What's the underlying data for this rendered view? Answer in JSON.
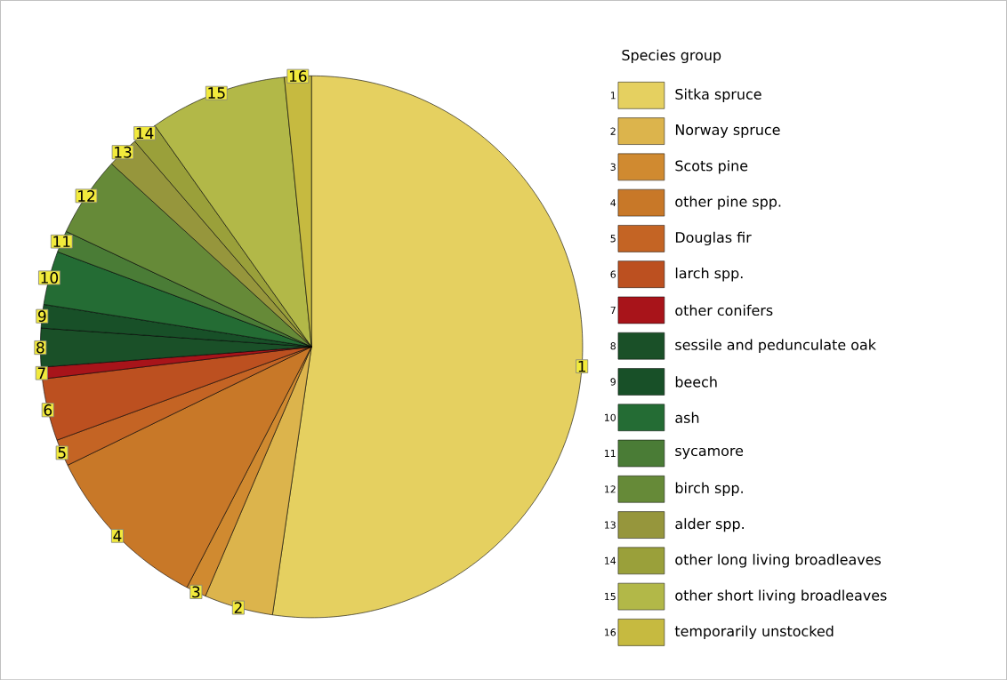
{
  "chart_data": {
    "type": "pie",
    "legend_title": "Species group",
    "legend": "right",
    "categories": [
      "Sitka spruce",
      "Norway spruce",
      "Scots pine",
      "other pine spp.",
      "Douglas fir",
      "larch spp.",
      "other conifers",
      "sessile and pedunculate oak",
      "beech",
      "ash",
      "sycamore",
      "birch spp.",
      "alder spp.",
      "other long living broadleaves",
      "other short living broadleaves",
      "temporarily unstocked"
    ],
    "values": [
      52.3,
      4.1,
      1.2,
      10.2,
      1.6,
      3.7,
      0.7,
      2.3,
      1.4,
      3.2,
      1.3,
      4.8,
      1.9,
      1.5,
      8.2,
      1.6
    ],
    "colors": [
      "#e5d060",
      "#dcb44c",
      "#d08a30",
      "#c87828",
      "#c46424",
      "#bc5020",
      "#a8141a",
      "#1a5028",
      "#185028",
      "#246c34",
      "#4a7c36",
      "#668a38",
      "#96963c",
      "#9aa03a",
      "#b2b848",
      "#c6ba40"
    ],
    "annotations": [
      "1",
      "2",
      "3",
      "4",
      "5",
      "6",
      "7",
      "8",
      "9",
      "10",
      "11",
      "12",
      "13",
      "14",
      "15",
      "16"
    ]
  }
}
